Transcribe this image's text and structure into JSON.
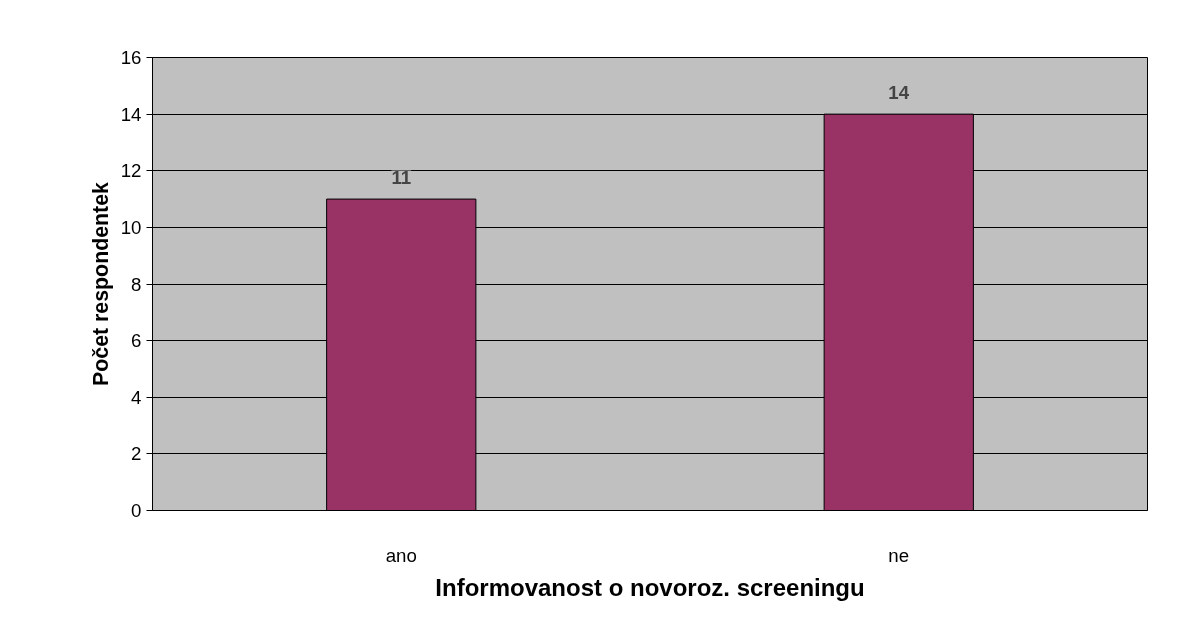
{
  "chart_data": {
    "type": "bar",
    "xlabel": "Informovanost o novoroz. screeningu",
    "ylabel": "Počet respondentek",
    "categories": [
      "ano",
      "ne"
    ],
    "values": [
      11,
      14
    ],
    "color": "#993366",
    "ylim": [
      0,
      16
    ],
    "yticks": [
      0,
      2,
      4,
      6,
      8,
      10,
      12,
      14,
      16
    ],
    "grid": "y",
    "data_labels": true
  }
}
